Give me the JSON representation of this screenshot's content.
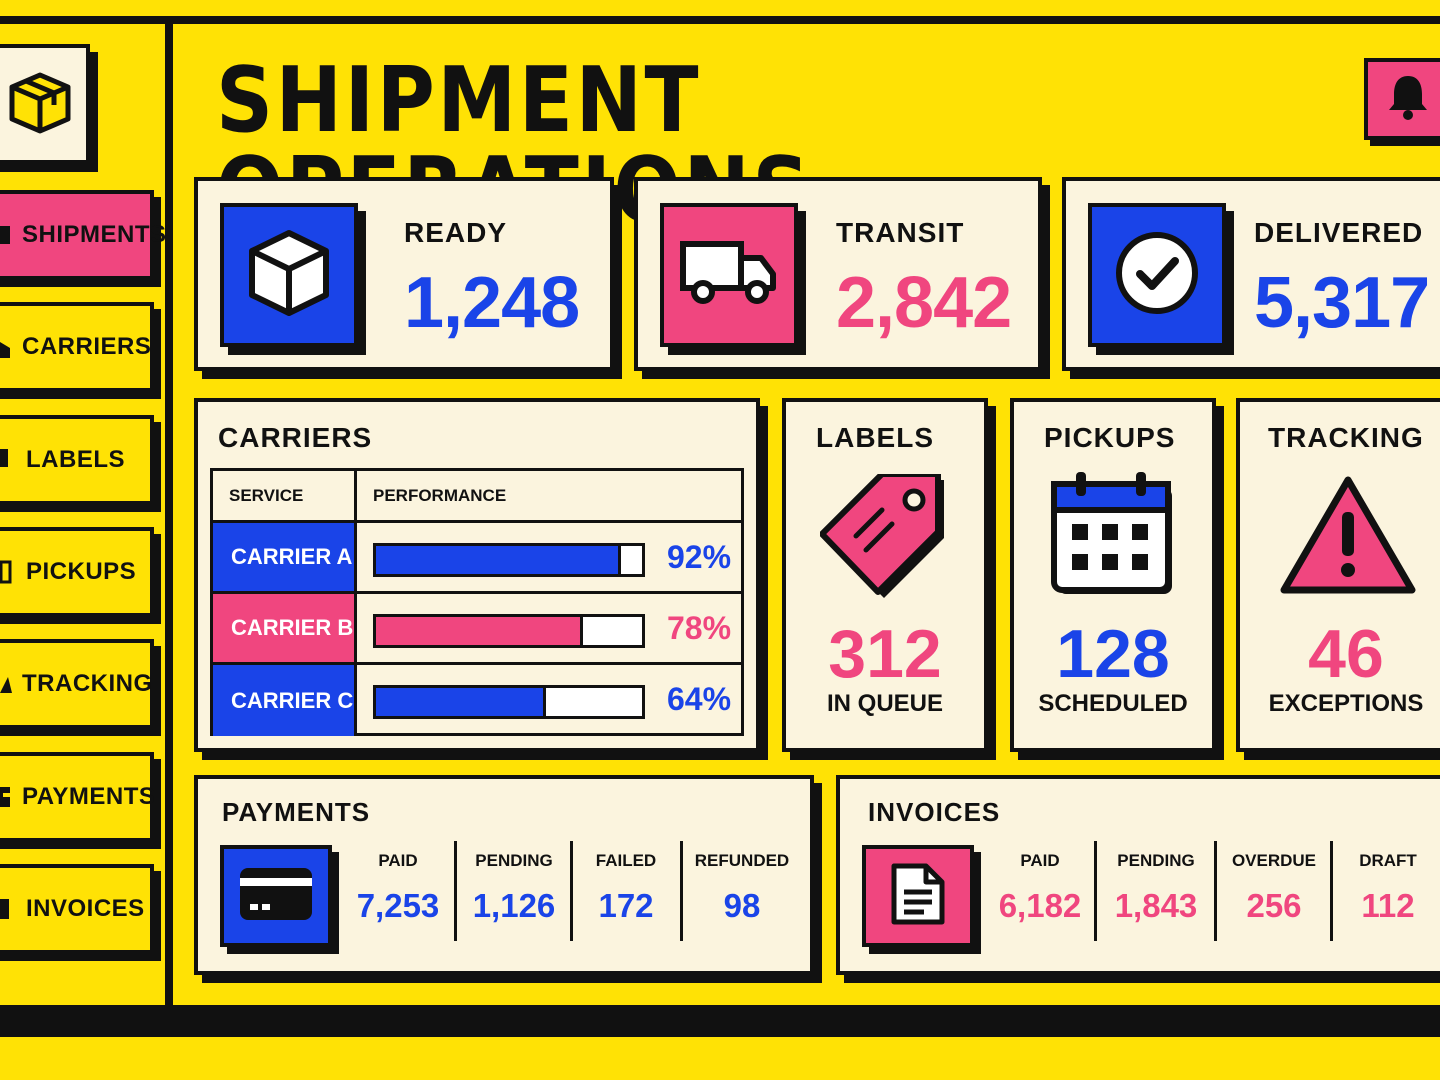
{
  "header": {
    "title": "SHIPMENT OPERATIONS"
  },
  "colors": {
    "background": "#FFE205",
    "pink": "#F0467F",
    "blue": "#1A44E8",
    "cream": "#FBF4DE",
    "ink": "#111111"
  },
  "sidebar": {
    "logo_icon": "package-box-icon",
    "items": [
      {
        "label": "SHIPMENTS",
        "icon": "box-icon",
        "active": true
      },
      {
        "label": "CARRIERS",
        "icon": "truck-icon",
        "active": false
      },
      {
        "label": "LABELS",
        "icon": "tag-icon",
        "active": false
      },
      {
        "label": "PICKUPS",
        "icon": "calendar-icon",
        "active": false
      },
      {
        "label": "TRACKING",
        "icon": "alert-icon",
        "active": false
      },
      {
        "label": "PAYMENTS",
        "icon": "card-icon",
        "active": false
      },
      {
        "label": "INVOICES",
        "icon": "document-icon",
        "active": false
      }
    ]
  },
  "stats": [
    {
      "label": "READY",
      "value": "1,248",
      "icon": "cube-icon",
      "color": "#1A44E8"
    },
    {
      "label": "TRANSIT",
      "value": "2,842",
      "icon": "truck-icon",
      "color": "#F0467F"
    },
    {
      "label": "DELIVERED",
      "value": "5,317",
      "icon": "check-circle-icon",
      "color": "#1A44E8"
    }
  ],
  "carriers": {
    "title": "CARRIERS",
    "columns": [
      "SERVICE",
      "PERFORMANCE"
    ],
    "rows": [
      {
        "service": "CARRIER A",
        "percent": 92,
        "percent_label": "92%",
        "color": "#1A44E8"
      },
      {
        "service": "CARRIER B",
        "percent": 78,
        "percent_label": "78%",
        "color": "#F0467F"
      },
      {
        "service": "CARRIER C",
        "percent": 64,
        "percent_label": "64%",
        "color": "#1A44E8"
      }
    ]
  },
  "labels": {
    "title": "LABELS",
    "value": "312",
    "sub": "IN QUEUE",
    "icon": "tag-icon"
  },
  "pickups": {
    "title": "PICKUPS",
    "value": "128",
    "sub": "SCHEDULED",
    "icon": "calendar-icon"
  },
  "tracking": {
    "title": "TRACKING",
    "value": "46",
    "sub": "EXCEPTIONS",
    "icon": "warning-icon"
  },
  "payments": {
    "title": "PAYMENTS",
    "icon": "credit-card-icon",
    "metrics": [
      {
        "label": "PAID",
        "value": "7,253"
      },
      {
        "label": "PENDING",
        "value": "1,126"
      },
      {
        "label": "FAILED",
        "value": "172"
      },
      {
        "label": "REFUNDED",
        "value": "98"
      }
    ]
  },
  "invoices": {
    "title": "INVOICES",
    "icon": "document-icon",
    "metrics": [
      {
        "label": "PAID",
        "value": "6,182"
      },
      {
        "label": "PENDING",
        "value": "1,843"
      },
      {
        "label": "OVERDUE",
        "value": "256"
      },
      {
        "label": "DRAFT",
        "value": "112"
      }
    ]
  }
}
